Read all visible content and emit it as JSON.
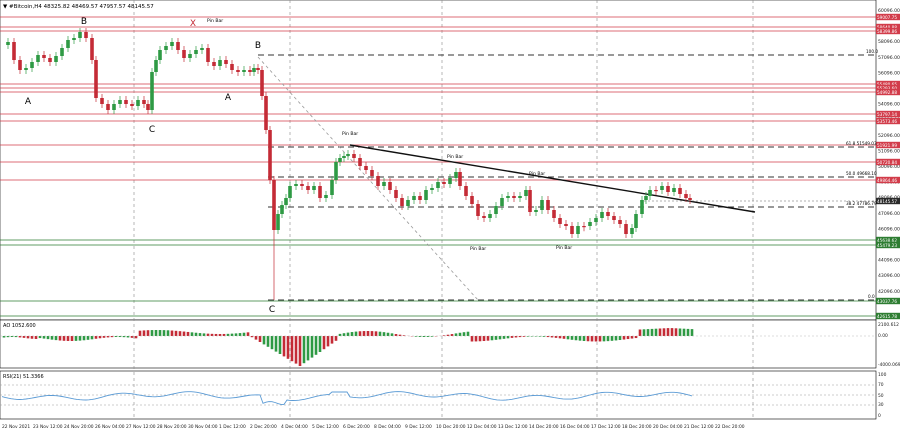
{
  "header": {
    "symbol_label": "▼ #Bitcoin,H4  48325.82 48469.57 47957.57 48145.57"
  },
  "main_chart": {
    "price_axis": [
      "60096.00",
      "59096.00",
      "58096.00",
      "57096.00",
      "56096.00",
      "55096.00",
      "54096.00",
      "53096.00",
      "52096.00",
      "51096.00",
      "50096.00",
      "49096.00",
      "48096.00",
      "47096.00",
      "46096.00",
      "45096.00",
      "44096.00",
      "43096.00",
      "42096.00"
    ],
    "level_tags": [
      {
        "text": "59007.75",
        "color": "#d23c4a"
      },
      {
        "text": "58640.88",
        "color": "#d23c4a"
      },
      {
        "text": "58399.86",
        "color": "#d23c4a"
      },
      {
        "text": "55480.65",
        "color": "#d23c4a"
      },
      {
        "text": "55293.60",
        "color": "#d23c4a"
      },
      {
        "text": "54992.88",
        "color": "#d23c4a"
      },
      {
        "text": "53797.14",
        "color": "#d23c4a"
      },
      {
        "text": "53573.46",
        "color": "#d23c4a"
      },
      {
        "text": "51921.99",
        "color": "#d23c4a"
      },
      {
        "text": "50720.84",
        "color": "#d23c4a"
      },
      {
        "text": "49864.46",
        "color": "#d23c4a"
      },
      {
        "text": "48145.57",
        "color": "#2b2b2b"
      },
      {
        "text": "45638.62",
        "color": "#2e7d32"
      },
      {
        "text": "45479.23",
        "color": "#2e7d32"
      },
      {
        "text": "43037.76",
        "color": "#2e7d32"
      },
      {
        "text": "42615.78",
        "color": "#2e7d32"
      }
    ],
    "fib_labels": [
      {
        "text": "100.0"
      },
      {
        "text": "61.8 51549.03"
      },
      {
        "text": "50.0 49668.10"
      },
      {
        "text": "38.2 47786.79"
      },
      {
        "text": "0.0"
      }
    ],
    "wave_labels": [
      "B",
      "X",
      "B",
      "A",
      "A",
      "C",
      "C"
    ],
    "pin_bar_labels": [
      "Pin Bar",
      "Pin Bar",
      "Pin Bar",
      "Pin Bar",
      "Pin Bar",
      "Pin Bar"
    ],
    "colors": {
      "bull": "#2e9a44",
      "bear": "#c42b36",
      "resistance": "#d23c4a",
      "support": "#2e7d32"
    }
  },
  "ao_panel": {
    "label": "AO 1052.600",
    "axis": [
      "2100.612",
      "0.00",
      "-4000.069"
    ]
  },
  "rsi_panel": {
    "label": "RSI(21) 51.3366",
    "axis": [
      "100",
      "70",
      "50",
      "30",
      "0"
    ],
    "line_color": "#5b9bd5"
  },
  "time_axis": [
    "22 Nov 2021",
    "23 Nov 12:00",
    "24 Nov 20:00",
    "26 Nov 04:00",
    "27 Nov 12:00",
    "28 Nov 20:00",
    "30 Nov 04:00",
    "1 Dec 12:00",
    "2 Dec 20:00",
    "4 Dec 04:00",
    "5 Dec 12:00",
    "6 Dec 20:00",
    "8 Dec 04:00",
    "9 Dec 12:00",
    "10 Dec 20:00",
    "12 Dec 04:00",
    "13 Dec 12:00",
    "14 Dec 20:00",
    "16 Dec 04:00",
    "17 Dec 12:00",
    "18 Dec 20:00",
    "20 Dec 04:00",
    "21 Dec 12:00",
    "22 Dec 20:00"
  ]
}
